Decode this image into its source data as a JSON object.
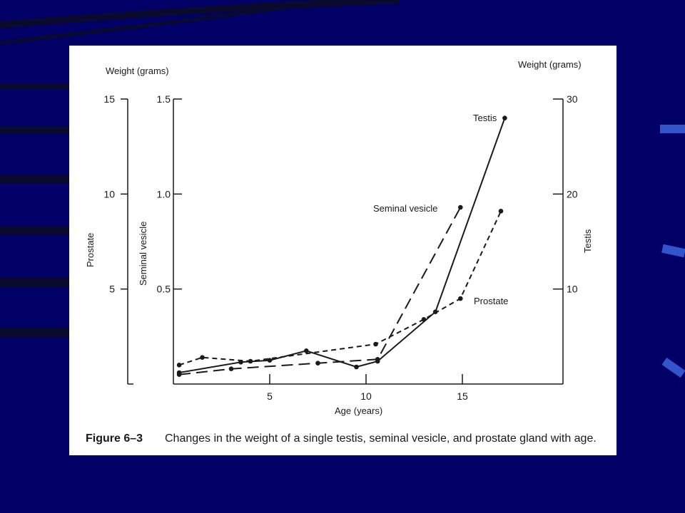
{
  "slide": {
    "background": "#000066",
    "stripe_color": "#0a0a2e",
    "accent": "#3355cc"
  },
  "figure": {
    "number": "Figure 6–3",
    "caption": "Changes in the weight of a single testis, seminal vesicle, and prostate gland with age."
  },
  "chart_data": {
    "type": "line",
    "xlabel": "Age (years)",
    "x_ticks": [
      5,
      10,
      15
    ],
    "xlim": [
      0,
      19
    ],
    "unit_left": "Weight (grams)",
    "unit_right": "Weight (grams)",
    "axes": {
      "prostate": {
        "label": "Prostate",
        "ticks": [
          5,
          10,
          15
        ],
        "ylim": [
          0,
          15
        ]
      },
      "seminal_vesicle": {
        "label": "Seminal vesicle",
        "ticks": [
          0.5,
          1.0,
          1.5
        ],
        "tick_labels": [
          "0.5",
          "1.0",
          "1.5"
        ],
        "ylim": [
          0,
          1.5
        ]
      },
      "testis": {
        "label": "Testis",
        "ticks": [
          10,
          20,
          30
        ],
        "ylim": [
          0,
          30
        ]
      }
    },
    "grid": false,
    "series": [
      {
        "name": "Testis",
        "axis": "testis",
        "dash": "solid",
        "x": [
          0.3,
          3.5,
          5.0,
          6.9,
          9.5,
          10.6,
          13.6,
          17.2
        ],
        "y": [
          1.2,
          2.3,
          2.5,
          3.5,
          1.8,
          2.4,
          7.6,
          28.0
        ]
      },
      {
        "name": "Seminal vesicle",
        "axis": "seminal_vesicle",
        "dash": "long",
        "x": [
          0.3,
          3.0,
          7.5,
          10.6,
          14.9
        ],
        "y": [
          0.05,
          0.08,
          0.11,
          0.13,
          0.93
        ]
      },
      {
        "name": "Prostate",
        "axis": "prostate",
        "dash": "short",
        "x": [
          0.3,
          1.5,
          4.0,
          10.5,
          13.0,
          14.9,
          17.0
        ],
        "y": [
          1.0,
          1.4,
          1.2,
          2.1,
          3.4,
          4.5,
          9.1
        ]
      }
    ]
  }
}
